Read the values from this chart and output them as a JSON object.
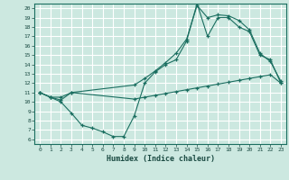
{
  "xlabel": "Humidex (Indice chaleur)",
  "xlim": [
    -0.5,
    23.5
  ],
  "ylim": [
    5.5,
    20.5
  ],
  "xticks": [
    0,
    1,
    2,
    3,
    4,
    5,
    6,
    7,
    8,
    9,
    10,
    11,
    12,
    13,
    14,
    15,
    16,
    17,
    18,
    19,
    20,
    21,
    22,
    23
  ],
  "yticks": [
    6,
    7,
    8,
    9,
    10,
    11,
    12,
    13,
    14,
    15,
    16,
    17,
    18,
    19,
    20
  ],
  "background_color": "#cce8e0",
  "grid_color": "#ffffff",
  "line_color": "#1a6e60",
  "line1_x": [
    0,
    1,
    2,
    3,
    4,
    5,
    6,
    7,
    8,
    9,
    10,
    11,
    12,
    13,
    14,
    15,
    16,
    17,
    18,
    19,
    20,
    21,
    22,
    23
  ],
  "line1_y": [
    11.0,
    10.5,
    10.0,
    8.8,
    7.5,
    7.2,
    6.8,
    6.3,
    6.3,
    8.5,
    12.0,
    13.2,
    14.0,
    14.5,
    16.5,
    20.5,
    17.0,
    19.0,
    19.0,
    18.0,
    17.5,
    15.0,
    14.5,
    12.0
  ],
  "line2_x": [
    0,
    1,
    2,
    3,
    9,
    10,
    11,
    12,
    13,
    14,
    15,
    16,
    17,
    18,
    19,
    20,
    21,
    22,
    23
  ],
  "line2_y": [
    11.0,
    10.5,
    10.2,
    11.0,
    10.3,
    10.5,
    10.7,
    10.9,
    11.1,
    11.3,
    11.5,
    11.7,
    11.9,
    12.1,
    12.3,
    12.5,
    12.7,
    12.9,
    12.0
  ],
  "line3_x": [
    0,
    1,
    2,
    3,
    9,
    10,
    11,
    12,
    13,
    14,
    15,
    16,
    17,
    18,
    19,
    20,
    21,
    22,
    23
  ],
  "line3_y": [
    11.0,
    10.5,
    10.5,
    11.0,
    11.8,
    12.5,
    13.3,
    14.2,
    15.2,
    16.7,
    20.3,
    19.0,
    19.3,
    19.2,
    18.7,
    17.7,
    15.2,
    14.3,
    12.2
  ]
}
